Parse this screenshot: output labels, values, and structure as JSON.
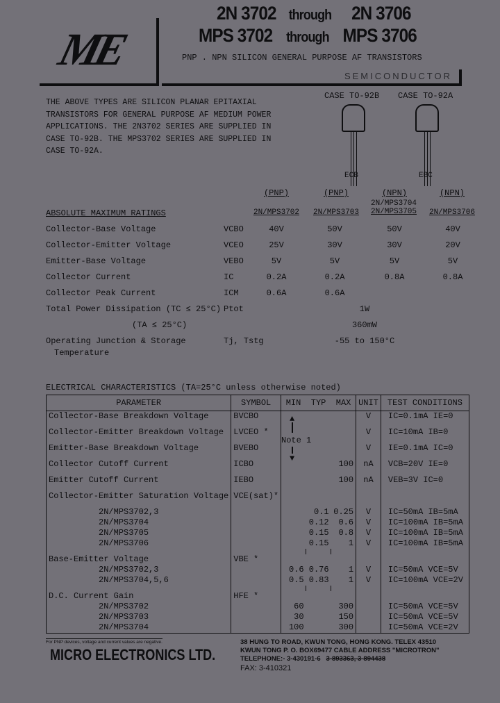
{
  "header": {
    "line1": {
      "a": "2N 3702",
      "through": "through",
      "b": "2N 3706"
    },
    "line2": {
      "a": "MPS 3702",
      "through": "through",
      "b": "MPS 3706"
    },
    "subtitle": "PNP . NPN SILICON GENERAL PURPOSE AF TRANSISTORS",
    "banner": "SEMICONDUCTOR",
    "logo": "ME"
  },
  "intro": [
    "THE ABOVE TYPES ARE SILICON PLANAR EPITAXIAL",
    "TRANSISTORS FOR GENERAL PURPOSE AF MEDIUM POWER",
    "APPLICATIONS.  THE 2N3702 SERIES ARE SUPPLIED IN",
    "CASE TO-92B.  THE MPS3702 SERIES ARE SUPPLIED IN",
    "CASE TO-92A."
  ],
  "cases": [
    {
      "label": "CASE TO-92B",
      "pins": "ECB"
    },
    {
      "label": "CASE TO-92A",
      "pins": "EBC"
    }
  ],
  "abs": {
    "title": "ABSOLUTE MAXIMUM RATINGS",
    "columns": [
      {
        "pol": "(PNP)",
        "type": "2N/MPS3702"
      },
      {
        "pol": "(PNP)",
        "type": "2N/MPS3703"
      },
      {
        "pol": "(NPN)",
        "type": "2N/MPS3704\n2N/MPS3705",
        "type1": "2N/MPS3704",
        "type2": "2N/MPS3705"
      },
      {
        "pol": "(NPN)",
        "type": "2N/MPS3706"
      }
    ],
    "rows": [
      {
        "param": "Collector-Base Voltage",
        "sym": "VCBO",
        "v": [
          "40V",
          "50V",
          "50V",
          "40V"
        ]
      },
      {
        "param": "Collector-Emitter Voltage",
        "sym": "VCEO",
        "v": [
          "25V",
          "30V",
          "30V",
          "20V"
        ]
      },
      {
        "param": "Emitter-Base Voltage",
        "sym": "VEBO",
        "v": [
          "5V",
          "5V",
          "5V",
          "5V"
        ]
      },
      {
        "param": "Collector Current",
        "sym": "IC",
        "v": [
          "0.2A",
          "0.2A",
          "0.8A",
          "0.8A"
        ]
      },
      {
        "param": "Collector Peak Current",
        "sym": "ICM",
        "v": [
          "0.6A",
          "0.6A",
          "",
          ""
        ]
      },
      {
        "param": "Total Power Dissipation (TC ≤ 25°C)",
        "sym": "Ptot",
        "all": "1W"
      },
      {
        "param": "(TA ≤ 25°C)",
        "sym": "",
        "all": "360mW"
      },
      {
        "param": "Operating Junction & Storage",
        "param2": "Temperature",
        "sym": "Tj, Tstg",
        "all": "-55 to 150°C"
      }
    ]
  },
  "ec": {
    "title": "ELECTRICAL CHARACTERISTICS  (TA=25°C  unless otherwise noted)",
    "headers": [
      "PARAMETER",
      "SYMBOL",
      "MIN",
      "TYP",
      "MAX",
      "UNIT",
      "TEST CONDITIONS"
    ],
    "note": "Note 1",
    "rows": [
      [
        "Collector-Base Breakdown Voltage",
        "BVCBO",
        "",
        "",
        "",
        "V",
        "IC=0.1mA  IE=0"
      ],
      [
        "Collector-Emitter Breakdown Voltage",
        "LVCEO *",
        "",
        "",
        "",
        "V",
        "IC=10mA   IB=0"
      ],
      [
        "Emitter-Base Breakdown Voltage",
        "BVEBO",
        "",
        "",
        "",
        "V",
        "IE=0.1mA  IC=0"
      ],
      [
        "Collector Cutoff Current",
        "ICBO",
        "",
        "",
        "100",
        "nA",
        "VCB=20V  IE=0"
      ],
      [
        "Emitter Cutoff Current",
        "IEBO",
        "",
        "",
        "100",
        "nA",
        "VEB=3V   IC=0"
      ],
      [
        "Collector-Emitter Saturation Voltage",
        "VCE(sat)*",
        "",
        "",
        "",
        "",
        ""
      ],
      [
        "          2N/MPS3702,3",
        "",
        "",
        "0.1",
        "0.25",
        "V",
        "IC=50mA  IB=5mA"
      ],
      [
        "          2N/MPS3704",
        "",
        "",
        "0.12",
        "0.6",
        "V",
        "IC=100mA IB=5mA"
      ],
      [
        "          2N/MPS3705",
        "",
        "",
        "0.15",
        "0.8",
        "V",
        "IC=100mA IB=5mA"
      ],
      [
        "          2N/MPS3706",
        "",
        "",
        "0.15",
        "1",
        "V",
        "IC=100mA IB=5mA"
      ],
      [
        "Base-Emitter Voltage",
        "VBE *",
        "",
        "",
        "",
        "",
        ""
      ],
      [
        "          2N/MPS3702,3",
        "",
        "0.6",
        "0.76",
        "1",
        "V",
        "IC=50mA  VCE=5V"
      ],
      [
        "          2N/MPS3704,5,6",
        "",
        "0.5",
        "0.83",
        "1",
        "V",
        "IC=100mA  VCE=2V"
      ],
      [
        "D.C. Current Gain",
        "HFE *",
        "",
        "",
        "",
        "",
        ""
      ],
      [
        "          2N/MPS3702",
        "",
        "60",
        "",
        "300",
        "",
        "IC=50mA  VCE=5V"
      ],
      [
        "          2N/MPS3703",
        "",
        "30",
        "",
        "150",
        "",
        "IC=50mA  VCE=5V"
      ],
      [
        "          2N/MPS3704",
        "",
        "100",
        "",
        "300",
        "",
        "IC=50mA  VCE=2V"
      ]
    ]
  },
  "footer": {
    "note": "For PNP devices, voltage and current values are negative.",
    "company": "MICRO ELECTRONICS LTD.",
    "addr1": "38 HUNG TO ROAD, KWUN TONG, HONG KONG.    TELEX 43510",
    "addr2": "KWUN TONG P. O. BOX69477 CABLE ADDRESS \"MICROTRON\"",
    "tel": "TELEPHONE:-  3-430191-6",
    "tel_old": "3-893363,  3-894438",
    "fax": "FAX: 3-410321"
  }
}
